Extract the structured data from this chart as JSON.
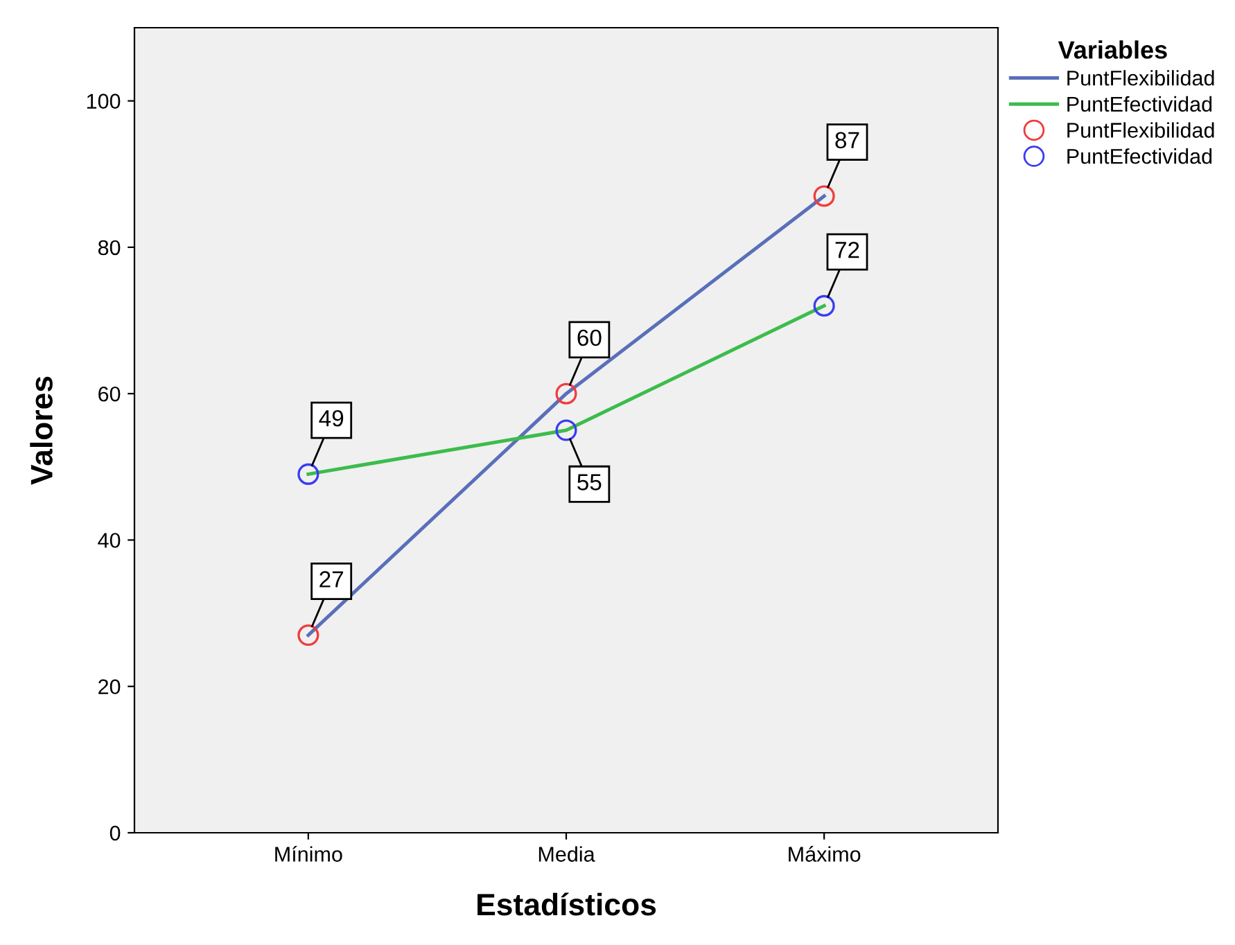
{
  "chart_data": {
    "type": "line",
    "xlabel": "Estadísticos",
    "ylabel": "Valores",
    "legend_title": "Variables",
    "categories": [
      "Mínimo",
      "Media",
      "Máximo"
    ],
    "series": [
      {
        "name": "PuntFlexibilidad",
        "color": "#5a6fba",
        "values": [
          27,
          60,
          87
        ]
      },
      {
        "name": "PuntEfectividad",
        "color": "#3cbc4c",
        "values": [
          49,
          55,
          72
        ]
      },
      {
        "name": "PuntFlexibilidad",
        "type": "scatter",
        "marker": "circle",
        "color": "#f03c3c",
        "values": [
          27,
          60,
          87
        ],
        "value_labels": [
          "27",
          "60",
          "87"
        ]
      },
      {
        "name": "PuntEfectividad",
        "type": "scatter",
        "marker": "circle",
        "color": "#3c3cf0",
        "values": [
          49,
          55,
          72
        ],
        "value_labels": [
          "49",
          "55",
          "72"
        ]
      }
    ],
    "ylim": [
      0,
      110
    ],
    "yticks": [
      0,
      20,
      40,
      60,
      80,
      100
    ],
    "grid": false,
    "legend": "right"
  }
}
